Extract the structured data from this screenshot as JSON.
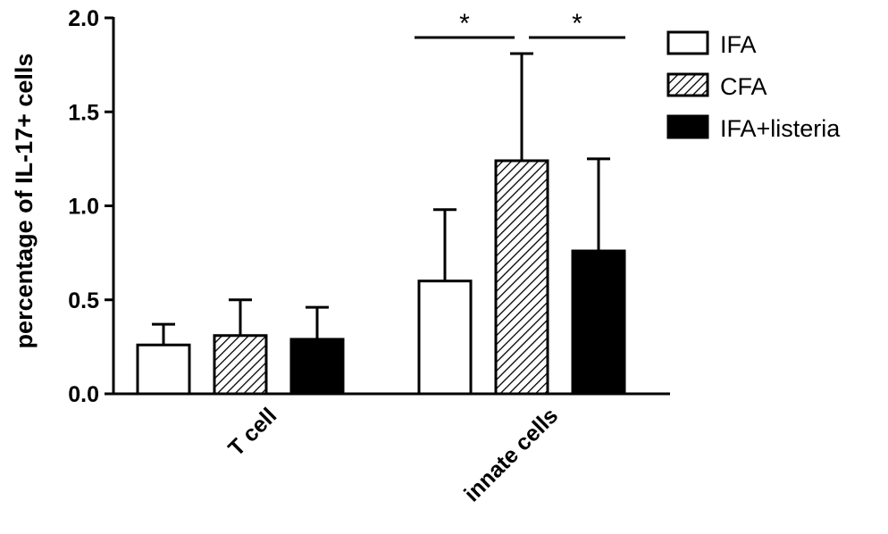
{
  "chart_data": {
    "type": "bar",
    "ylabel": "percentage of IL-17+ cells",
    "xlabel": "",
    "ylim": [
      0,
      2.0
    ],
    "yticks": [
      "0.0",
      "0.5",
      "1.0",
      "1.5",
      "2.0"
    ],
    "categories": [
      "T cell",
      "innate cells"
    ],
    "series": [
      {
        "name": "IFA",
        "values": [
          0.26,
          0.6
        ],
        "errors": [
          0.11,
          0.38
        ],
        "fill": "white"
      },
      {
        "name": "CFA",
        "values": [
          0.31,
          1.24
        ],
        "errors": [
          0.19,
          0.57
        ],
        "fill": "hatch"
      },
      {
        "name": "IFA+listeria",
        "values": [
          0.29,
          0.76
        ],
        "errors": [
          0.17,
          0.49
        ],
        "fill": "black"
      }
    ],
    "significance": [
      {
        "category": "innate cells",
        "from": "IFA",
        "to": "CFA",
        "label": "*"
      },
      {
        "category": "innate cells",
        "from": "CFA",
        "to": "IFA+listeria",
        "label": "*"
      }
    ],
    "legend_position": "top-right",
    "grid": false
  }
}
